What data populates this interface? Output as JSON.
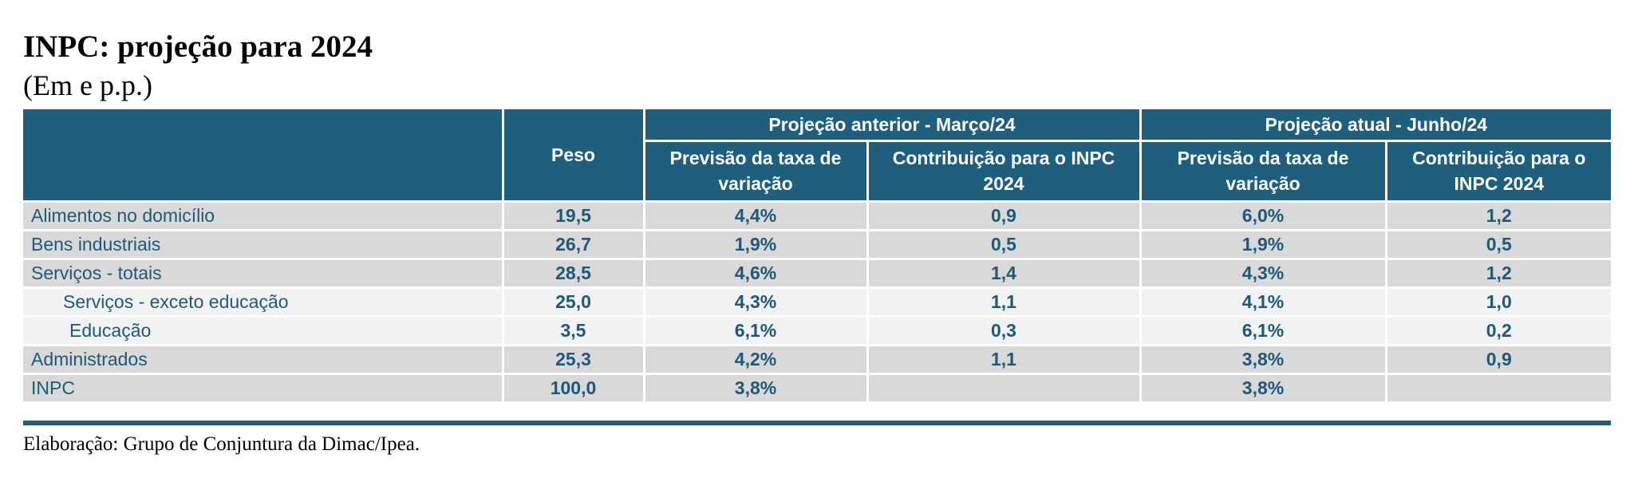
{
  "title": "INPC: projeção para 2024",
  "subtitle": "(Em e p.p.)",
  "header": {
    "peso": "Peso",
    "group_prev": "Projeção anterior - Março/24",
    "group_curr": "Projeção atual - Junho/24",
    "prev_rate": "Previsão da taxa de variação",
    "prev_contrib": "Contribuição para o INPC 2024",
    "curr_rate": "Previsão da taxa de variação",
    "curr_contrib": "Contribuição para o INPC 2024"
  },
  "rows": [
    {
      "label": "Alimentos no domicílio",
      "peso": "19,5",
      "prev_rate": "4,4%",
      "prev_contrib": "0,9",
      "curr_rate": "6,0%",
      "curr_contrib": "1,2"
    },
    {
      "label": "Bens industriais",
      "peso": "26,7",
      "prev_rate": "1,9%",
      "prev_contrib": "0,5",
      "curr_rate": "1,9%",
      "curr_contrib": "0,5"
    },
    {
      "label": "Serviços - totais",
      "peso": "28,5",
      "prev_rate": "4,6%",
      "prev_contrib": "1,4",
      "curr_rate": "4,3%",
      "curr_contrib": "1,2"
    },
    {
      "label": "Serviços - exceto educação",
      "peso": "25,0",
      "prev_rate": "4,3%",
      "prev_contrib": "1,1",
      "curr_rate": "4,1%",
      "curr_contrib": "1,0"
    },
    {
      "label": "Educação",
      "peso": "3,5",
      "prev_rate": "6,1%",
      "prev_contrib": "0,3",
      "curr_rate": "6,1%",
      "curr_contrib": "0,2"
    },
    {
      "label": "Administrados",
      "peso": "25,3",
      "prev_rate": "4,2%",
      "prev_contrib": "1,1",
      "curr_rate": "3,8%",
      "curr_contrib": "0,9"
    },
    {
      "label": "INPC",
      "peso": "100,0",
      "prev_rate": "3,8%",
      "prev_contrib": "",
      "curr_rate": "3,8%",
      "curr_contrib": ""
    }
  ],
  "footnote": "Elaboração: Grupo de Conjuntura da Dimac/Ipea.",
  "colors": {
    "header_bg": "#1d5f7d",
    "text": "#1d5a78",
    "row_gray": "#d9d9d9",
    "row_light": "#f2f2f2"
  }
}
